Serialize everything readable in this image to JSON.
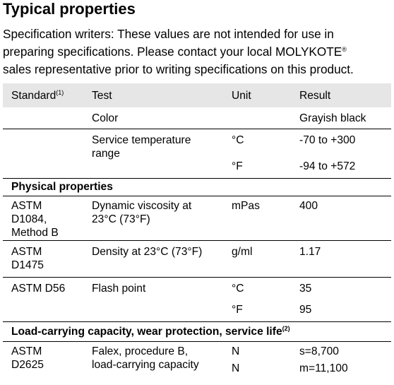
{
  "title": "Typical properties",
  "intro": [
    "Specification writers: These values are not intended for use in",
    "preparing specifications. Please contact your local MOLYKOTE",
    "sales representative prior to writing specifications on this product."
  ],
  "intro_trademark": "®",
  "table": {
    "header": {
      "standard": "Standard",
      "standard_note": "(1)",
      "test": "Test",
      "unit": "Unit",
      "result": "Result"
    },
    "rows": [
      {
        "test": "Color",
        "result": "Grayish black"
      },
      {
        "test_1": "Service temperature",
        "test_2": "range",
        "unit_1": "°C",
        "result_1": "-70 to +300",
        "unit_2": "°F",
        "result_2": "-94 to +572"
      }
    ],
    "section_physical": "Physical properties",
    "physical_rows": [
      {
        "std_1": "ASTM",
        "std_2": "D1084,",
        "std_3": "Method B",
        "test_1": "Dynamic viscosity at",
        "test_2": "23°C (73°F)",
        "unit": "mPas",
        "result": "400"
      },
      {
        "std_1": "ASTM",
        "std_2": "D1475",
        "test": "Density at 23°C (73°F)",
        "unit": "g/ml",
        "result": "1.17"
      },
      {
        "std": "ASTM D56",
        "test": "Flash point",
        "unit_1": "°C",
        "result_1": "35",
        "unit_2": "°F",
        "result_2": "95"
      }
    ],
    "section_load": "Load-carrying capacity, wear protection, service life",
    "section_load_note": "(2)",
    "load_rows": [
      {
        "std_1": "ASTM",
        "std_2": "D2625",
        "test_1": "Falex, procedure B,",
        "test_2": "load-carrying capacity",
        "unit_1": "N",
        "result_1": "s=8,700",
        "unit_2": "N",
        "result_2": "m=11,100"
      }
    ]
  }
}
